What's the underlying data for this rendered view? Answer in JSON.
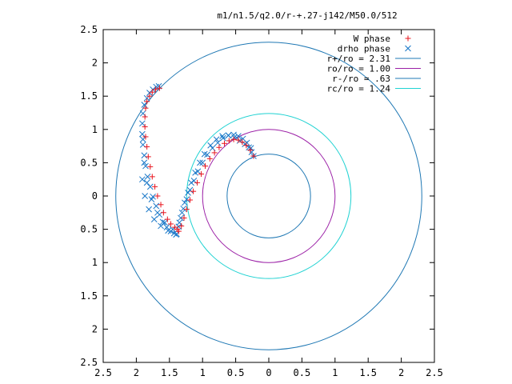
{
  "chart_data": {
    "type": "scatter",
    "title": "m1/n1.5/q2.0/r-+.27-j142/M50.0/512",
    "xlim": [
      -2.5,
      2.5
    ],
    "ylim": [
      -2.5,
      2.5
    ],
    "x_tick_values": [
      -2.5,
      -2,
      -1.5,
      -1,
      -0.5,
      0,
      0.5,
      1,
      1.5,
      2,
      2.5
    ],
    "x_tick_labels": [
      "2.5",
      "2",
      "1.5",
      "1",
      "0.5",
      "0",
      "0.5",
      "1",
      "1.5",
      "2",
      "2.5"
    ],
    "y_tick_values": [
      2.5,
      2,
      1.5,
      1,
      0.5,
      0,
      -0.5,
      -1,
      -1.5,
      -2,
      -2.5
    ],
    "y_tick_labels": [
      "2.5",
      "2",
      "1.5",
      "1",
      "0.5",
      "0",
      "0.5",
      "1",
      "1.5",
      "2",
      "2.5"
    ],
    "grid": false,
    "legend_position": "top-right",
    "circles": [
      {
        "name": "r+/ro = 2.31",
        "radius": 2.31,
        "color": "#1f78b4"
      },
      {
        "name": "ro/ro = 1.00",
        "radius": 1.0,
        "color": "#9b1fa6"
      },
      {
        "name": "r-/ro = .63",
        "radius": 0.63,
        "color": "#1f78b4"
      },
      {
        "name": "rc/ro = 1.24",
        "radius": 1.24,
        "color": "#1fd2d2"
      }
    ],
    "series": [
      {
        "name": "W phase",
        "marker": "plus",
        "color": "#e8141d",
        "x": [
          -0.23,
          -0.28,
          -0.34,
          -0.4,
          -0.46,
          -0.53,
          -0.6,
          -0.67,
          -0.75,
          -0.82,
          -0.89,
          -0.96,
          -1.02,
          -1.08,
          -1.14,
          -1.19,
          -1.24,
          -1.28,
          -1.32,
          -1.36,
          -1.38,
          -1.42,
          -1.48,
          -1.53,
          -1.59,
          -1.63,
          -1.68,
          -1.72,
          -1.76,
          -1.79,
          -1.82,
          -1.84,
          -1.86,
          -1.87,
          -1.87,
          -1.86,
          -1.84,
          -1.8,
          -1.76,
          -1.71,
          -1.65
        ],
        "y": [
          0.6,
          0.69,
          0.76,
          0.81,
          0.84,
          0.85,
          0.83,
          0.79,
          0.73,
          0.65,
          0.56,
          0.45,
          0.33,
          0.2,
          0.07,
          -0.06,
          -0.2,
          -0.33,
          -0.45,
          -0.53,
          -0.5,
          -0.47,
          -0.42,
          -0.35,
          -0.25,
          -0.13,
          0.0,
          0.14,
          0.29,
          0.44,
          0.59,
          0.74,
          0.89,
          1.04,
          1.19,
          1.32,
          1.42,
          1.5,
          1.56,
          1.6,
          1.62
        ]
      },
      {
        "name": "drho phase",
        "marker": "cross",
        "color": "#1a78c8",
        "x": [
          -0.23,
          -0.27,
          -0.33,
          -0.39,
          -0.46,
          -0.53,
          -0.61,
          -0.69,
          -0.77,
          -0.85,
          -0.93,
          -1.0,
          -1.07,
          -1.13,
          -1.19,
          -1.24,
          -1.29,
          -1.33,
          -1.36,
          -1.39,
          -1.43,
          -1.48,
          -1.54,
          -1.6,
          -1.65,
          -1.7,
          -1.75,
          -1.79,
          -1.83,
          -1.86,
          -1.88,
          -1.9,
          -1.91,
          -1.91,
          -1.9,
          -1.88,
          -1.84,
          -1.8,
          -1.75,
          -1.7,
          -1.66,
          -1.9,
          -1.88,
          -1.84,
          -1.77,
          -1.68,
          -1.57,
          -1.45,
          -1.4,
          -1.52,
          -1.63,
          -1.73,
          -1.81,
          -1.87,
          -1.91,
          -1.35,
          -1.31,
          -1.27,
          -1.22,
          -1.17,
          -1.11,
          -1.04,
          -0.97,
          -0.88,
          -0.79,
          -0.7,
          -0.61,
          -0.52,
          -0.44,
          -0.36,
          -0.3,
          -0.26
        ],
        "y": [
          0.6,
          0.72,
          0.8,
          0.86,
          0.9,
          0.92,
          0.91,
          0.87,
          0.8,
          0.72,
          0.62,
          0.5,
          0.37,
          0.23,
          0.09,
          -0.05,
          -0.19,
          -0.33,
          -0.46,
          -0.57,
          -0.56,
          -0.53,
          -0.47,
          -0.39,
          -0.28,
          -0.15,
          -0.01,
          0.14,
          0.29,
          0.45,
          0.61,
          0.77,
          0.93,
          1.09,
          1.24,
          1.37,
          1.47,
          1.55,
          1.6,
          1.64,
          1.65,
          0.85,
          0.5,
          0.2,
          -0.05,
          -0.25,
          -0.4,
          -0.5,
          -0.58,
          -0.52,
          -0.45,
          -0.35,
          -0.2,
          0.0,
          0.25,
          -0.4,
          -0.25,
          -0.1,
          0.05,
          0.2,
          0.35,
          0.5,
          0.63,
          0.76,
          0.85,
          0.9,
          0.91,
          0.88,
          0.83,
          0.78,
          0.73,
          0.66
        ]
      }
    ]
  }
}
